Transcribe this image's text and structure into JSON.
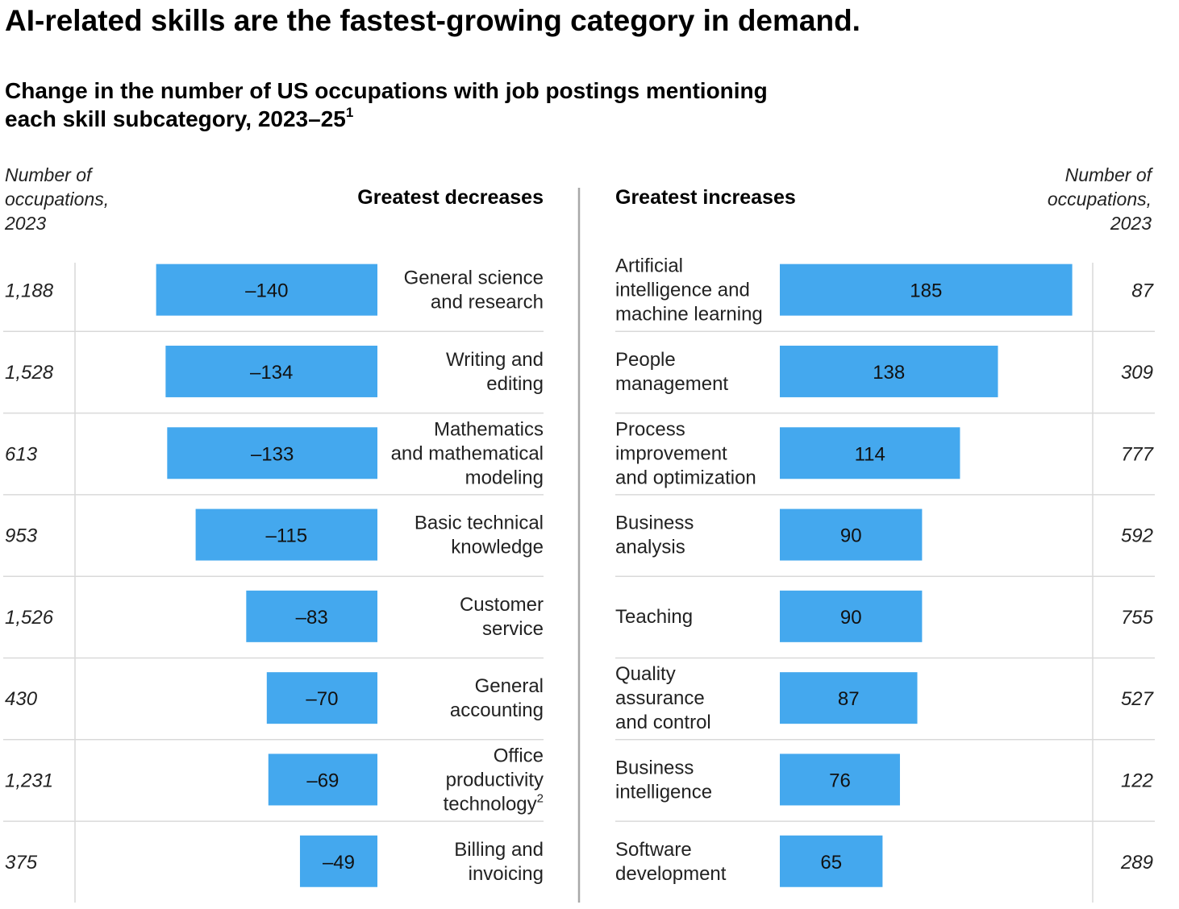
{
  "chart_data": {
    "type": "bar",
    "title": "AI-related skills are the fastest-growing category in demand.",
    "subtitle_lines": [
      "Change in the number of US occupations with job postings mentioning",
      "each skill subcategory, 2023–25"
    ],
    "subtitle_footnote": "1",
    "count_header_left": [
      "Number of",
      "occupations,",
      "2023"
    ],
    "count_header_right": [
      "Number of",
      "occupations,",
      "2023"
    ],
    "decreases": {
      "title": "Greatest decreases",
      "color": "#44a8ee",
      "rows": [
        {
          "label_lines": [
            "General science",
            "and research"
          ],
          "value": -140,
          "value_label": "–140",
          "count_2023": "1,188"
        },
        {
          "label_lines": [
            "Writing and",
            "editing"
          ],
          "value": -134,
          "value_label": "–134",
          "count_2023": "1,528"
        },
        {
          "label_lines": [
            "Mathematics",
            "and mathematical",
            "modeling"
          ],
          "value": -133,
          "value_label": "–133",
          "count_2023": "613"
        },
        {
          "label_lines": [
            "Basic technical",
            "knowledge"
          ],
          "value": -115,
          "value_label": "–115",
          "count_2023": "953"
        },
        {
          "label_lines": [
            "Customer",
            "service"
          ],
          "value": -83,
          "value_label": "–83",
          "count_2023": "1,526"
        },
        {
          "label_lines": [
            "General",
            "accounting"
          ],
          "value": -70,
          "value_label": "–70",
          "count_2023": "430"
        },
        {
          "label_lines": [
            "Office",
            "productivity",
            "technology"
          ],
          "footnote": "2",
          "value": -69,
          "value_label": "–69",
          "count_2023": "1,231"
        },
        {
          "label_lines": [
            "Billing and",
            "invoicing"
          ],
          "value": -49,
          "value_label": "–49",
          "count_2023": "375"
        }
      ]
    },
    "increases": {
      "title": "Greatest increases",
      "color": "#44a8ee",
      "rows": [
        {
          "label_lines": [
            "Artificial",
            "intelligence and",
            "machine learning"
          ],
          "value": 185,
          "value_label": "185",
          "count_2023": "87"
        },
        {
          "label_lines": [
            "People",
            "management"
          ],
          "value": 138,
          "value_label": "138",
          "count_2023": "309"
        },
        {
          "label_lines": [
            "Process",
            "improvement",
            "and optimization"
          ],
          "value": 114,
          "value_label": "114",
          "count_2023": "777"
        },
        {
          "label_lines": [
            "Business",
            "analysis"
          ],
          "value": 90,
          "value_label": "90",
          "count_2023": "592"
        },
        {
          "label_lines": [
            "Teaching"
          ],
          "value": 90,
          "value_label": "90",
          "count_2023": "755"
        },
        {
          "label_lines": [
            "Quality",
            "assurance",
            "and control"
          ],
          "value": 87,
          "value_label": "87",
          "count_2023": "527"
        },
        {
          "label_lines": [
            "Business",
            "intelligence"
          ],
          "value": 76,
          "value_label": "76",
          "count_2023": "122"
        },
        {
          "label_lines": [
            "Software",
            "development"
          ],
          "value": 65,
          "value_label": "65",
          "count_2023": "289"
        }
      ]
    }
  }
}
